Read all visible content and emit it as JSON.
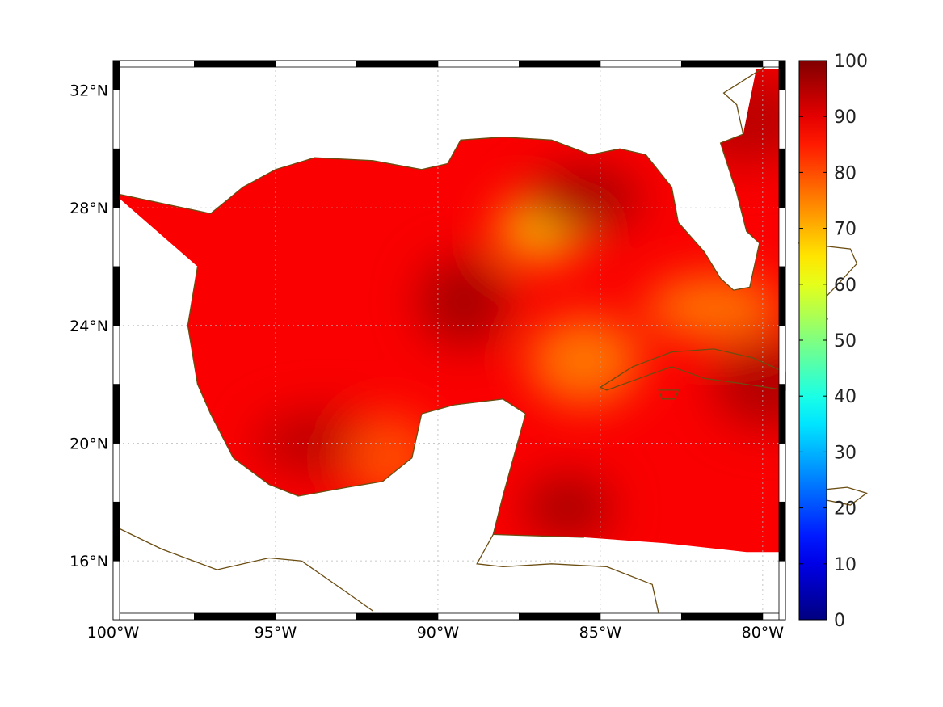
{
  "chart_data": {
    "type": "heatmap",
    "title": "",
    "xlabel": "",
    "ylabel": "",
    "x_range": [
      -100,
      -79.3
    ],
    "y_range": [
      14,
      33
    ],
    "x_ticks": [
      {
        "value": -100,
        "label": "100°W"
      },
      {
        "value": -95,
        "label": "95°W"
      },
      {
        "value": -90,
        "label": "90°W"
      },
      {
        "value": -85,
        "label": "85°W"
      },
      {
        "value": -80,
        "label": "80°W"
      }
    ],
    "y_ticks": [
      {
        "value": 16,
        "label": "16°N"
      },
      {
        "value": 20,
        "label": "20°N"
      },
      {
        "value": 24,
        "label": "24°N"
      },
      {
        "value": 28,
        "label": "28°N"
      },
      {
        "value": 32,
        "label": "32°N"
      }
    ],
    "grid": true,
    "colorbar": {
      "range": [
        0,
        100
      ],
      "colormap": "jet",
      "ticks": [
        {
          "value": 0,
          "label": "0"
        },
        {
          "value": 10,
          "label": "10"
        },
        {
          "value": 20,
          "label": "20"
        },
        {
          "value": 30,
          "label": "30"
        },
        {
          "value": 40,
          "label": "40"
        },
        {
          "value": 50,
          "label": "50"
        },
        {
          "value": 60,
          "label": "60"
        },
        {
          "value": 70,
          "label": "70"
        },
        {
          "value": 80,
          "label": "80"
        },
        {
          "value": 90,
          "label": "90"
        },
        {
          "value": 100,
          "label": "100"
        }
      ]
    },
    "field": {
      "typical_range": [
        70,
        98
      ],
      "dominant_value": 88,
      "regions": [
        {
          "lon": -86.8,
          "lat": 27.3,
          "value": 70
        },
        {
          "lon": -85.5,
          "lat": 22.8,
          "value": 76
        },
        {
          "lon": -81.5,
          "lat": 24.6,
          "value": 76
        },
        {
          "lon": -89.2,
          "lat": 24.8,
          "value": 96
        },
        {
          "lon": -85.5,
          "lat": 28.3,
          "value": 96
        },
        {
          "lon": -80.5,
          "lat": 31.0,
          "value": 94
        },
        {
          "lon": -86.0,
          "lat": 17.8,
          "value": 96
        },
        {
          "lon": -79.8,
          "lat": 22.0,
          "value": 95
        },
        {
          "lon": -93.5,
          "lat": 20.0,
          "value": 94
        },
        {
          "lon": -91.5,
          "lat": 19.5,
          "value": 80
        }
      ]
    },
    "colors": {
      "coastline": "#6b4d12",
      "grid": "#b8b8b8",
      "frame": "#000000"
    }
  }
}
